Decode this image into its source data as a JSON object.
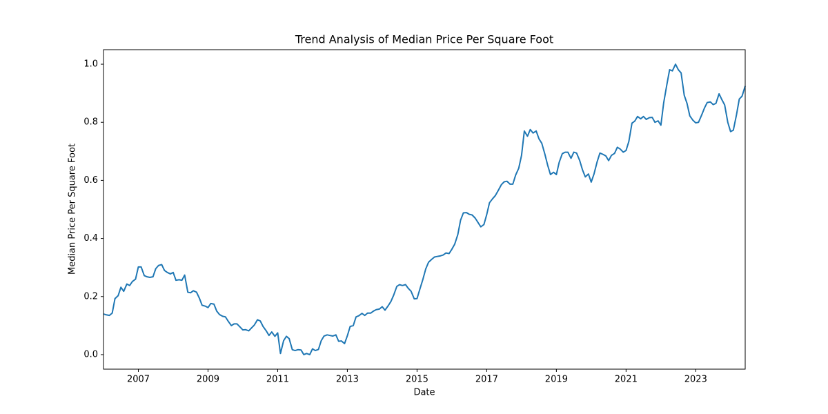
{
  "chart_data": {
    "type": "line",
    "title": "Trend Analysis of Median Price Per Square Foot",
    "xlabel": "Date",
    "ylabel": "Median Price Per Square Foot",
    "color": "#1f77b4",
    "grid": false,
    "xlim": [
      2006,
      2024.42
    ],
    "ylim": [
      -0.05,
      1.05
    ],
    "xticks": [
      2007,
      2009,
      2011,
      2013,
      2015,
      2017,
      2019,
      2021,
      2023
    ],
    "yticks": [
      {
        "value": 0,
        "label": "0.0"
      },
      0.2,
      0.4,
      0.6,
      0.8,
      {
        "value": 1,
        "label": "1.0"
      }
    ],
    "x": [
      2006.0,
      2006.08,
      2006.17,
      2006.25,
      2006.33,
      2006.42,
      2006.5,
      2006.58,
      2006.67,
      2006.75,
      2006.83,
      2006.92,
      2007.0,
      2007.08,
      2007.17,
      2007.25,
      2007.33,
      2007.42,
      2007.5,
      2007.58,
      2007.67,
      2007.75,
      2007.83,
      2007.92,
      2008.0,
      2008.08,
      2008.17,
      2008.25,
      2008.33,
      2008.42,
      2008.5,
      2008.58,
      2008.67,
      2008.75,
      2008.83,
      2008.92,
      2009.0,
      2009.08,
      2009.17,
      2009.25,
      2009.33,
      2009.42,
      2009.5,
      2009.58,
      2009.67,
      2009.75,
      2009.83,
      2009.92,
      2010.0,
      2010.08,
      2010.17,
      2010.25,
      2010.33,
      2010.42,
      2010.5,
      2010.58,
      2010.67,
      2010.75,
      2010.83,
      2010.92,
      2011.0,
      2011.08,
      2011.17,
      2011.25,
      2011.33,
      2011.42,
      2011.5,
      2011.58,
      2011.67,
      2011.75,
      2011.83,
      2011.92,
      2012.0,
      2012.08,
      2012.17,
      2012.25,
      2012.33,
      2012.42,
      2012.5,
      2012.58,
      2012.67,
      2012.75,
      2012.83,
      2012.92,
      2013.0,
      2013.08,
      2013.17,
      2013.25,
      2013.33,
      2013.42,
      2013.5,
      2013.58,
      2013.67,
      2013.75,
      2013.83,
      2013.92,
      2014.0,
      2014.08,
      2014.17,
      2014.25,
      2014.33,
      2014.42,
      2014.5,
      2014.58,
      2014.67,
      2014.75,
      2014.83,
      2014.92,
      2015.0,
      2015.08,
      2015.17,
      2015.25,
      2015.33,
      2015.42,
      2015.5,
      2015.58,
      2015.67,
      2015.75,
      2015.83,
      2015.92,
      2016.0,
      2016.08,
      2016.17,
      2016.25,
      2016.33,
      2016.42,
      2016.5,
      2016.58,
      2016.67,
      2016.75,
      2016.83,
      2016.92,
      2017.0,
      2017.08,
      2017.17,
      2017.25,
      2017.33,
      2017.42,
      2017.5,
      2017.58,
      2017.67,
      2017.75,
      2017.83,
      2017.92,
      2018.0,
      2018.08,
      2018.17,
      2018.25,
      2018.33,
      2018.42,
      2018.5,
      2018.58,
      2018.67,
      2018.75,
      2018.83,
      2018.92,
      2019.0,
      2019.08,
      2019.17,
      2019.25,
      2019.33,
      2019.42,
      2019.5,
      2019.58,
      2019.67,
      2019.75,
      2019.83,
      2019.92,
      2020.0,
      2020.08,
      2020.17,
      2020.25,
      2020.33,
      2020.42,
      2020.5,
      2020.58,
      2020.67,
      2020.75,
      2020.83,
      2020.92,
      2021.0,
      2021.08,
      2021.17,
      2021.25,
      2021.33,
      2021.42,
      2021.5,
      2021.58,
      2021.67,
      2021.75,
      2021.83,
      2021.92,
      2022.0,
      2022.08,
      2022.17,
      2022.25,
      2022.33,
      2022.42,
      2022.5,
      2022.58,
      2022.67,
      2022.75,
      2022.83,
      2022.92,
      2023.0,
      2023.08,
      2023.17,
      2023.25,
      2023.33,
      2023.42,
      2023.5,
      2023.58,
      2023.67,
      2023.75,
      2023.83,
      2023.92,
      2024.0,
      2024.08,
      2024.17,
      2024.25,
      2024.33,
      2024.42
    ],
    "values": [
      0.14,
      0.137,
      0.135,
      0.143,
      0.193,
      0.203,
      0.232,
      0.218,
      0.243,
      0.238,
      0.252,
      0.26,
      0.302,
      0.302,
      0.272,
      0.268,
      0.266,
      0.268,
      0.296,
      0.307,
      0.31,
      0.29,
      0.283,
      0.278,
      0.283,
      0.256,
      0.258,
      0.256,
      0.274,
      0.215,
      0.213,
      0.22,
      0.215,
      0.195,
      0.17,
      0.167,
      0.162,
      0.176,
      0.174,
      0.15,
      0.138,
      0.132,
      0.13,
      0.115,
      0.1,
      0.106,
      0.106,
      0.095,
      0.085,
      0.086,
      0.082,
      0.092,
      0.102,
      0.12,
      0.116,
      0.097,
      0.082,
      0.066,
      0.078,
      0.063,
      0.075,
      0.004,
      0.048,
      0.063,
      0.055,
      0.017,
      0.014,
      0.017,
      0.016,
      0.0,
      0.004,
      0.0,
      0.02,
      0.014,
      0.018,
      0.048,
      0.064,
      0.068,
      0.066,
      0.064,
      0.068,
      0.046,
      0.047,
      0.038,
      0.065,
      0.097,
      0.1,
      0.13,
      0.134,
      0.142,
      0.135,
      0.143,
      0.143,
      0.15,
      0.155,
      0.157,
      0.165,
      0.153,
      0.168,
      0.183,
      0.205,
      0.235,
      0.241,
      0.238,
      0.241,
      0.228,
      0.218,
      0.192,
      0.193,
      0.225,
      0.26,
      0.295,
      0.318,
      0.328,
      0.336,
      0.338,
      0.34,
      0.343,
      0.35,
      0.348,
      0.363,
      0.38,
      0.413,
      0.463,
      0.488,
      0.489,
      0.483,
      0.481,
      0.47,
      0.455,
      0.44,
      0.448,
      0.482,
      0.523,
      0.537,
      0.548,
      0.565,
      0.585,
      0.595,
      0.597,
      0.587,
      0.587,
      0.618,
      0.642,
      0.686,
      0.77,
      0.752,
      0.775,
      0.763,
      0.77,
      0.743,
      0.728,
      0.69,
      0.652,
      0.62,
      0.628,
      0.62,
      0.662,
      0.692,
      0.697,
      0.697,
      0.676,
      0.697,
      0.694,
      0.668,
      0.636,
      0.612,
      0.622,
      0.594,
      0.622,
      0.664,
      0.694,
      0.69,
      0.684,
      0.668,
      0.686,
      0.693,
      0.714,
      0.708,
      0.697,
      0.703,
      0.734,
      0.797,
      0.804,
      0.82,
      0.812,
      0.82,
      0.81,
      0.816,
      0.817,
      0.8,
      0.805,
      0.79,
      0.867,
      0.929,
      0.981,
      0.977,
      1.0,
      0.981,
      0.97,
      0.893,
      0.865,
      0.822,
      0.807,
      0.798,
      0.8,
      0.825,
      0.849,
      0.868,
      0.87,
      0.861,
      0.865,
      0.898,
      0.878,
      0.86,
      0.8,
      0.768,
      0.773,
      0.826,
      0.88,
      0.89,
      0.925
    ]
  }
}
